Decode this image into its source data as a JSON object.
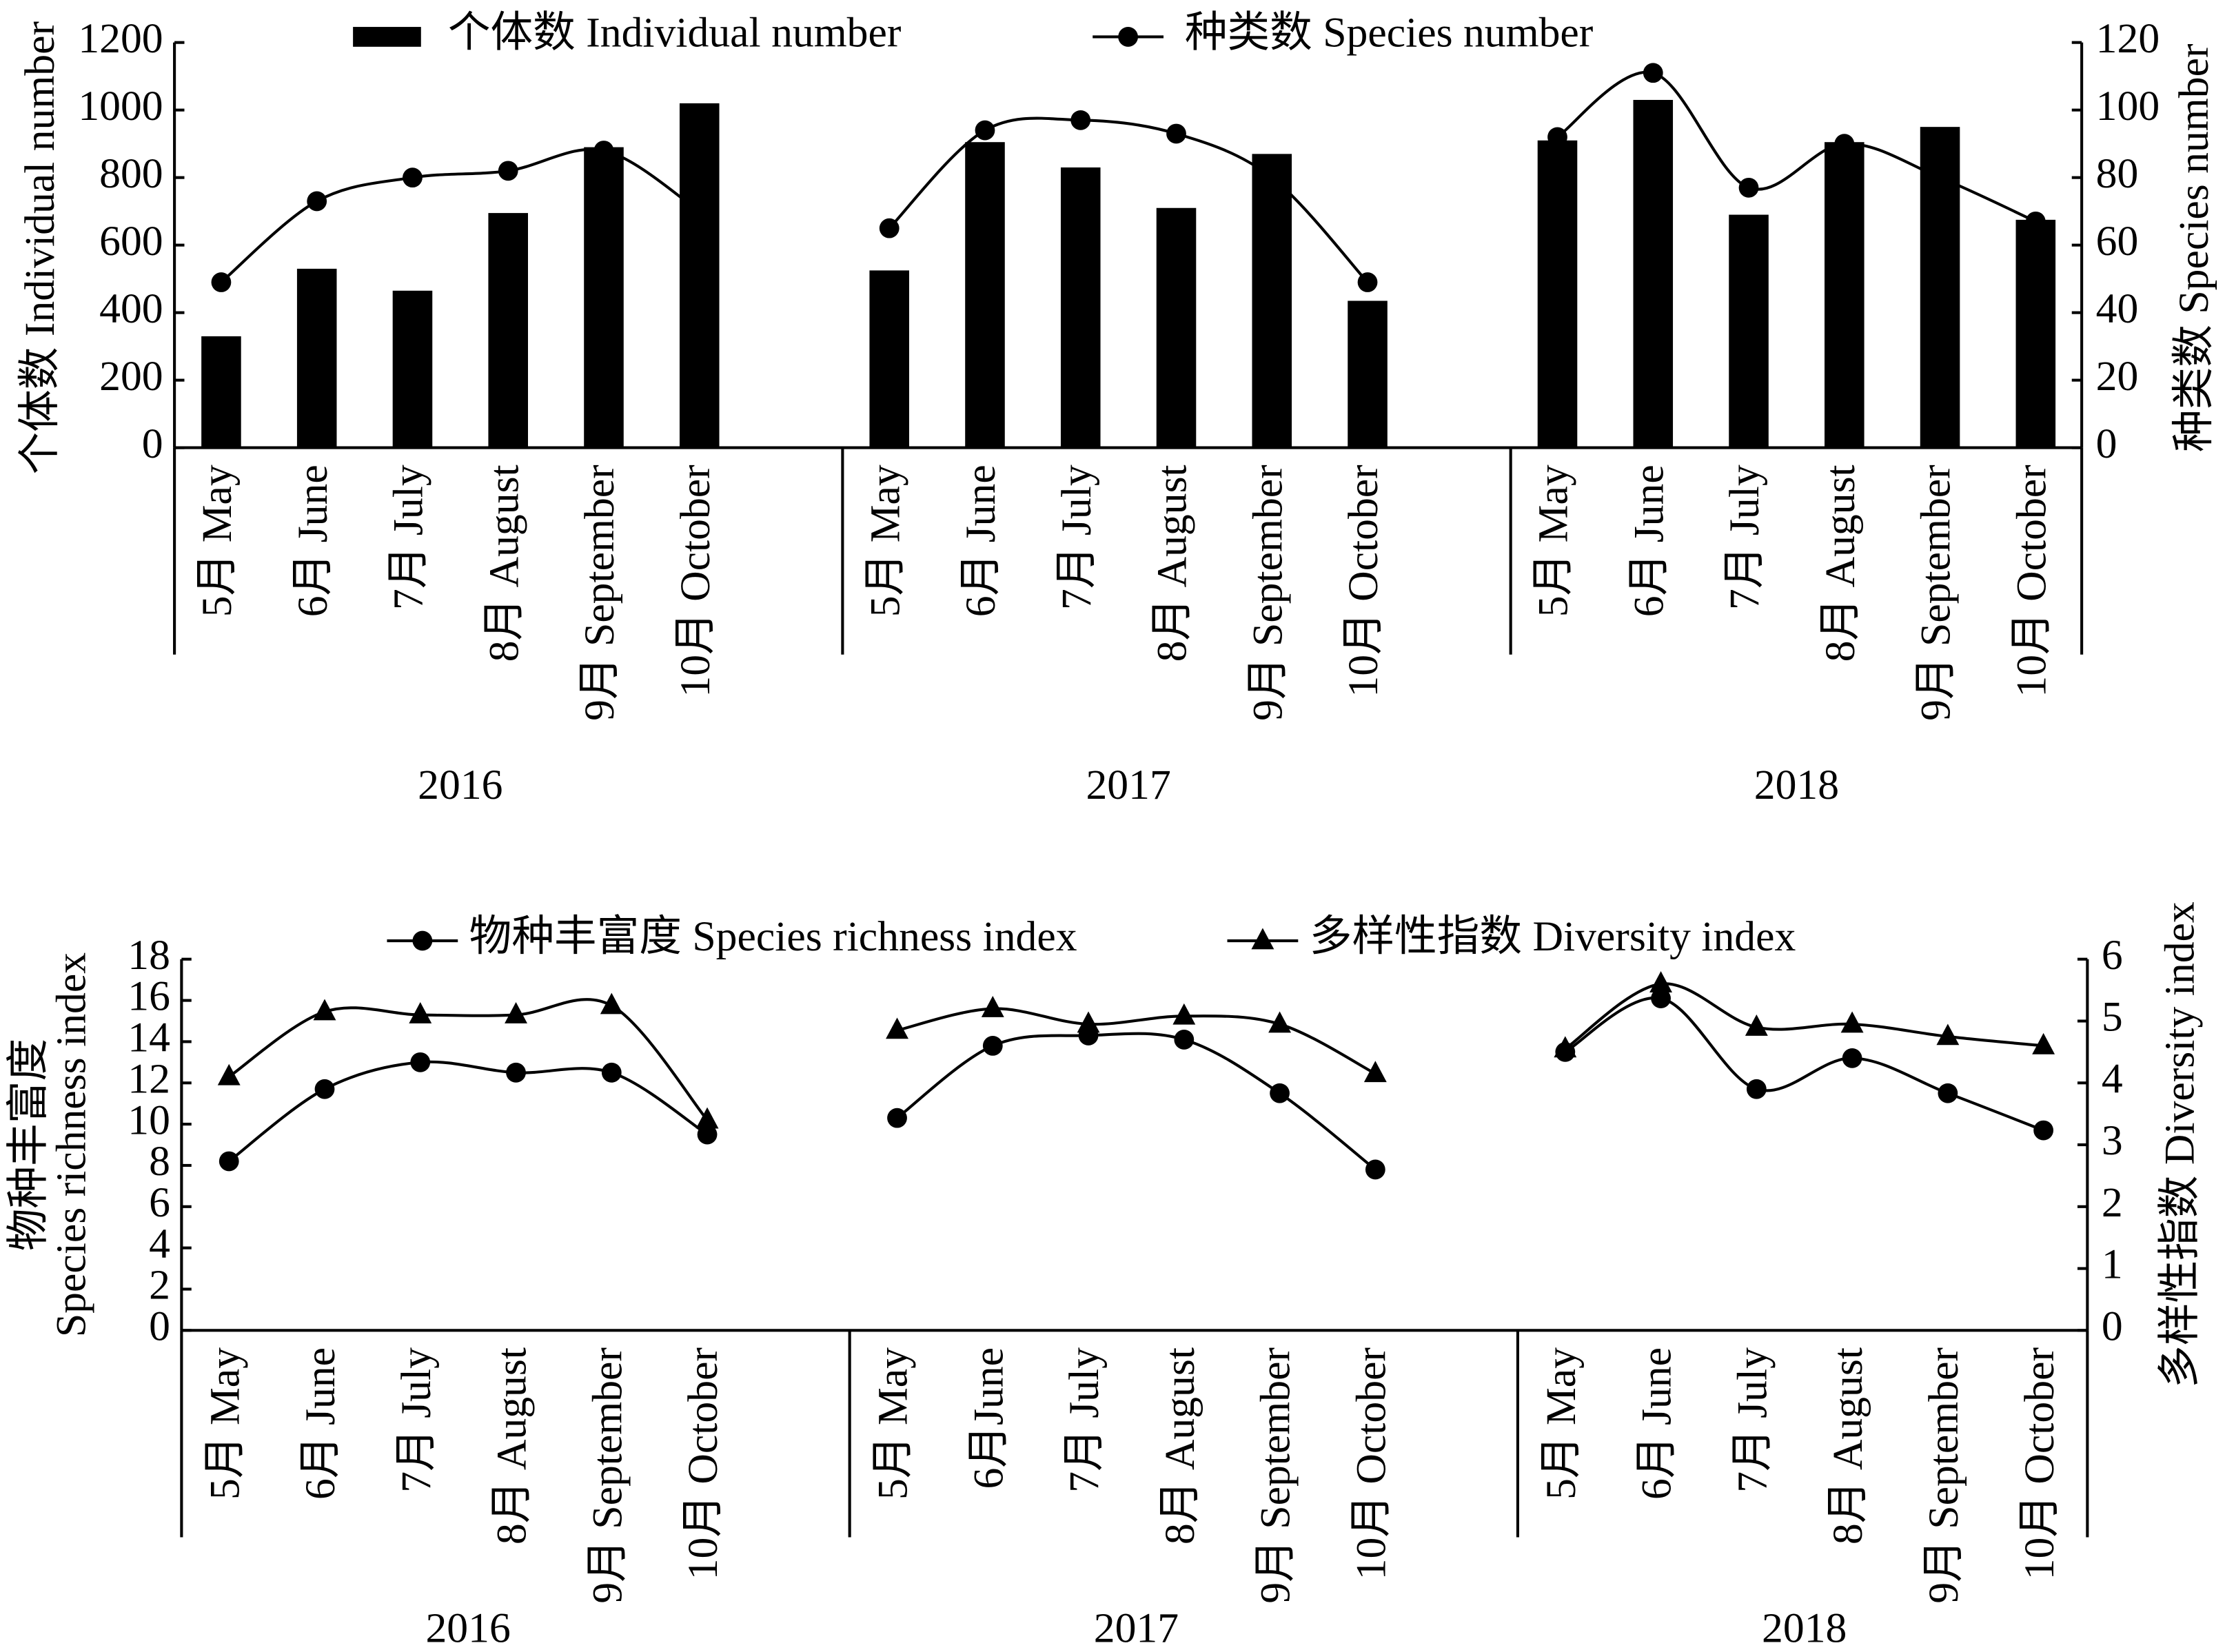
{
  "chart_data": [
    {
      "type": "bar",
      "ylabel": [
        "个体数 Individual number"
      ],
      "y2label": [
        "种类数 Species number"
      ],
      "groups": [
        "2016",
        "2017",
        "2018"
      ],
      "categories": [
        "5月 May",
        "6月 June",
        "7月 July",
        "8月 August",
        "9月 September",
        "10月 October",
        "5月 May",
        "6月 June",
        "7月 July",
        "8月 August",
        "9月 September",
        "10月 October",
        "5月 May",
        "6月 June",
        "7月 July",
        "8月 August",
        "9月 September",
        "10月 October"
      ],
      "series": [
        {
          "name": "个体数 Individual number",
          "type": "bar",
          "color": "#000000",
          "values": [
            330,
            530,
            465,
            695,
            890,
            1020,
            525,
            905,
            830,
            710,
            870,
            435,
            910,
            1030,
            690,
            905,
            950,
            675
          ]
        },
        {
          "name": "种类数 Species number",
          "type": "line",
          "marker": "circle",
          "axis": "y2",
          "color": "#000000",
          "values": [
            49,
            73,
            80,
            82,
            88,
            70,
            65,
            94,
            97,
            93,
            80,
            49,
            92,
            111,
            77,
            90,
            80,
            67
          ]
        }
      ],
      "ylim": [
        0,
        1200
      ],
      "yticks": [
        0,
        200,
        400,
        600,
        800,
        1000,
        1200
      ],
      "y2lim": [
        0,
        120
      ],
      "y2ticks": [
        0,
        20,
        40,
        60,
        80,
        100,
        120
      ]
    },
    {
      "type": "line",
      "ylabel": [
        "物种丰富度",
        "Species richness index"
      ],
      "y2label": [
        "多样性指数 Diversity index"
      ],
      "groups": [
        "2016",
        "2017",
        "2018"
      ],
      "categories": [
        "5月 May",
        "6月 June",
        "7月 July",
        "8月 August",
        "9月 September",
        "10月 October",
        "5月 May",
        "6月June",
        "7月 July",
        "8月 August",
        "9月 September",
        "10月 October",
        "5月 May",
        "6月 June",
        "7月 July",
        "8月 August",
        "9月 September",
        "10月 October"
      ],
      "series": [
        {
          "name": "物种丰富度 Species richness index",
          "type": "line",
          "marker": "circle",
          "color": "#000000",
          "values": [
            8.2,
            11.7,
            13.0,
            12.5,
            12.5,
            9.5,
            10.3,
            13.8,
            14.3,
            14.1,
            11.5,
            7.8,
            13.5,
            16.1,
            11.7,
            13.2,
            11.5,
            9.7
          ]
        },
        {
          "name": "多样性指数 Diversity index",
          "type": "line",
          "marker": "triangle",
          "axis": "y2",
          "color": "#000000",
          "values": [
            4.1,
            5.15,
            5.1,
            5.1,
            5.25,
            3.4,
            4.85,
            5.2,
            4.95,
            5.08,
            4.95,
            4.15,
            4.55,
            5.6,
            4.9,
            4.95,
            4.75,
            4.6
          ]
        }
      ],
      "ylim": [
        0,
        18
      ],
      "yticks": [
        0,
        2,
        4,
        6,
        8,
        10,
        12,
        14,
        16,
        18
      ],
      "y2lim": [
        0,
        6
      ],
      "y2ticks": [
        0,
        1,
        2,
        3,
        4,
        5,
        6
      ]
    }
  ]
}
